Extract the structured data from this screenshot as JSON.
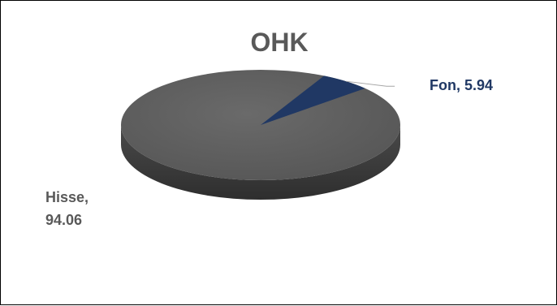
{
  "chart_data": {
    "type": "pie",
    "title": "OHK",
    "slices": [
      {
        "name": "Fon",
        "value": 5.94,
        "label": "Fon, 5.94",
        "color": "#203864"
      },
      {
        "name": "Hisse",
        "value": 94.06,
        "label_line1": "Hisse,",
        "label_line2": "94.06",
        "color": "#595959"
      }
    ]
  },
  "colors": {
    "title": "#595959",
    "fon_label": "#203864",
    "hisse_label": "#595959",
    "pie_top": "#595959",
    "pie_side": "#3a3a3a",
    "leader_line": "#a6a6a6"
  }
}
